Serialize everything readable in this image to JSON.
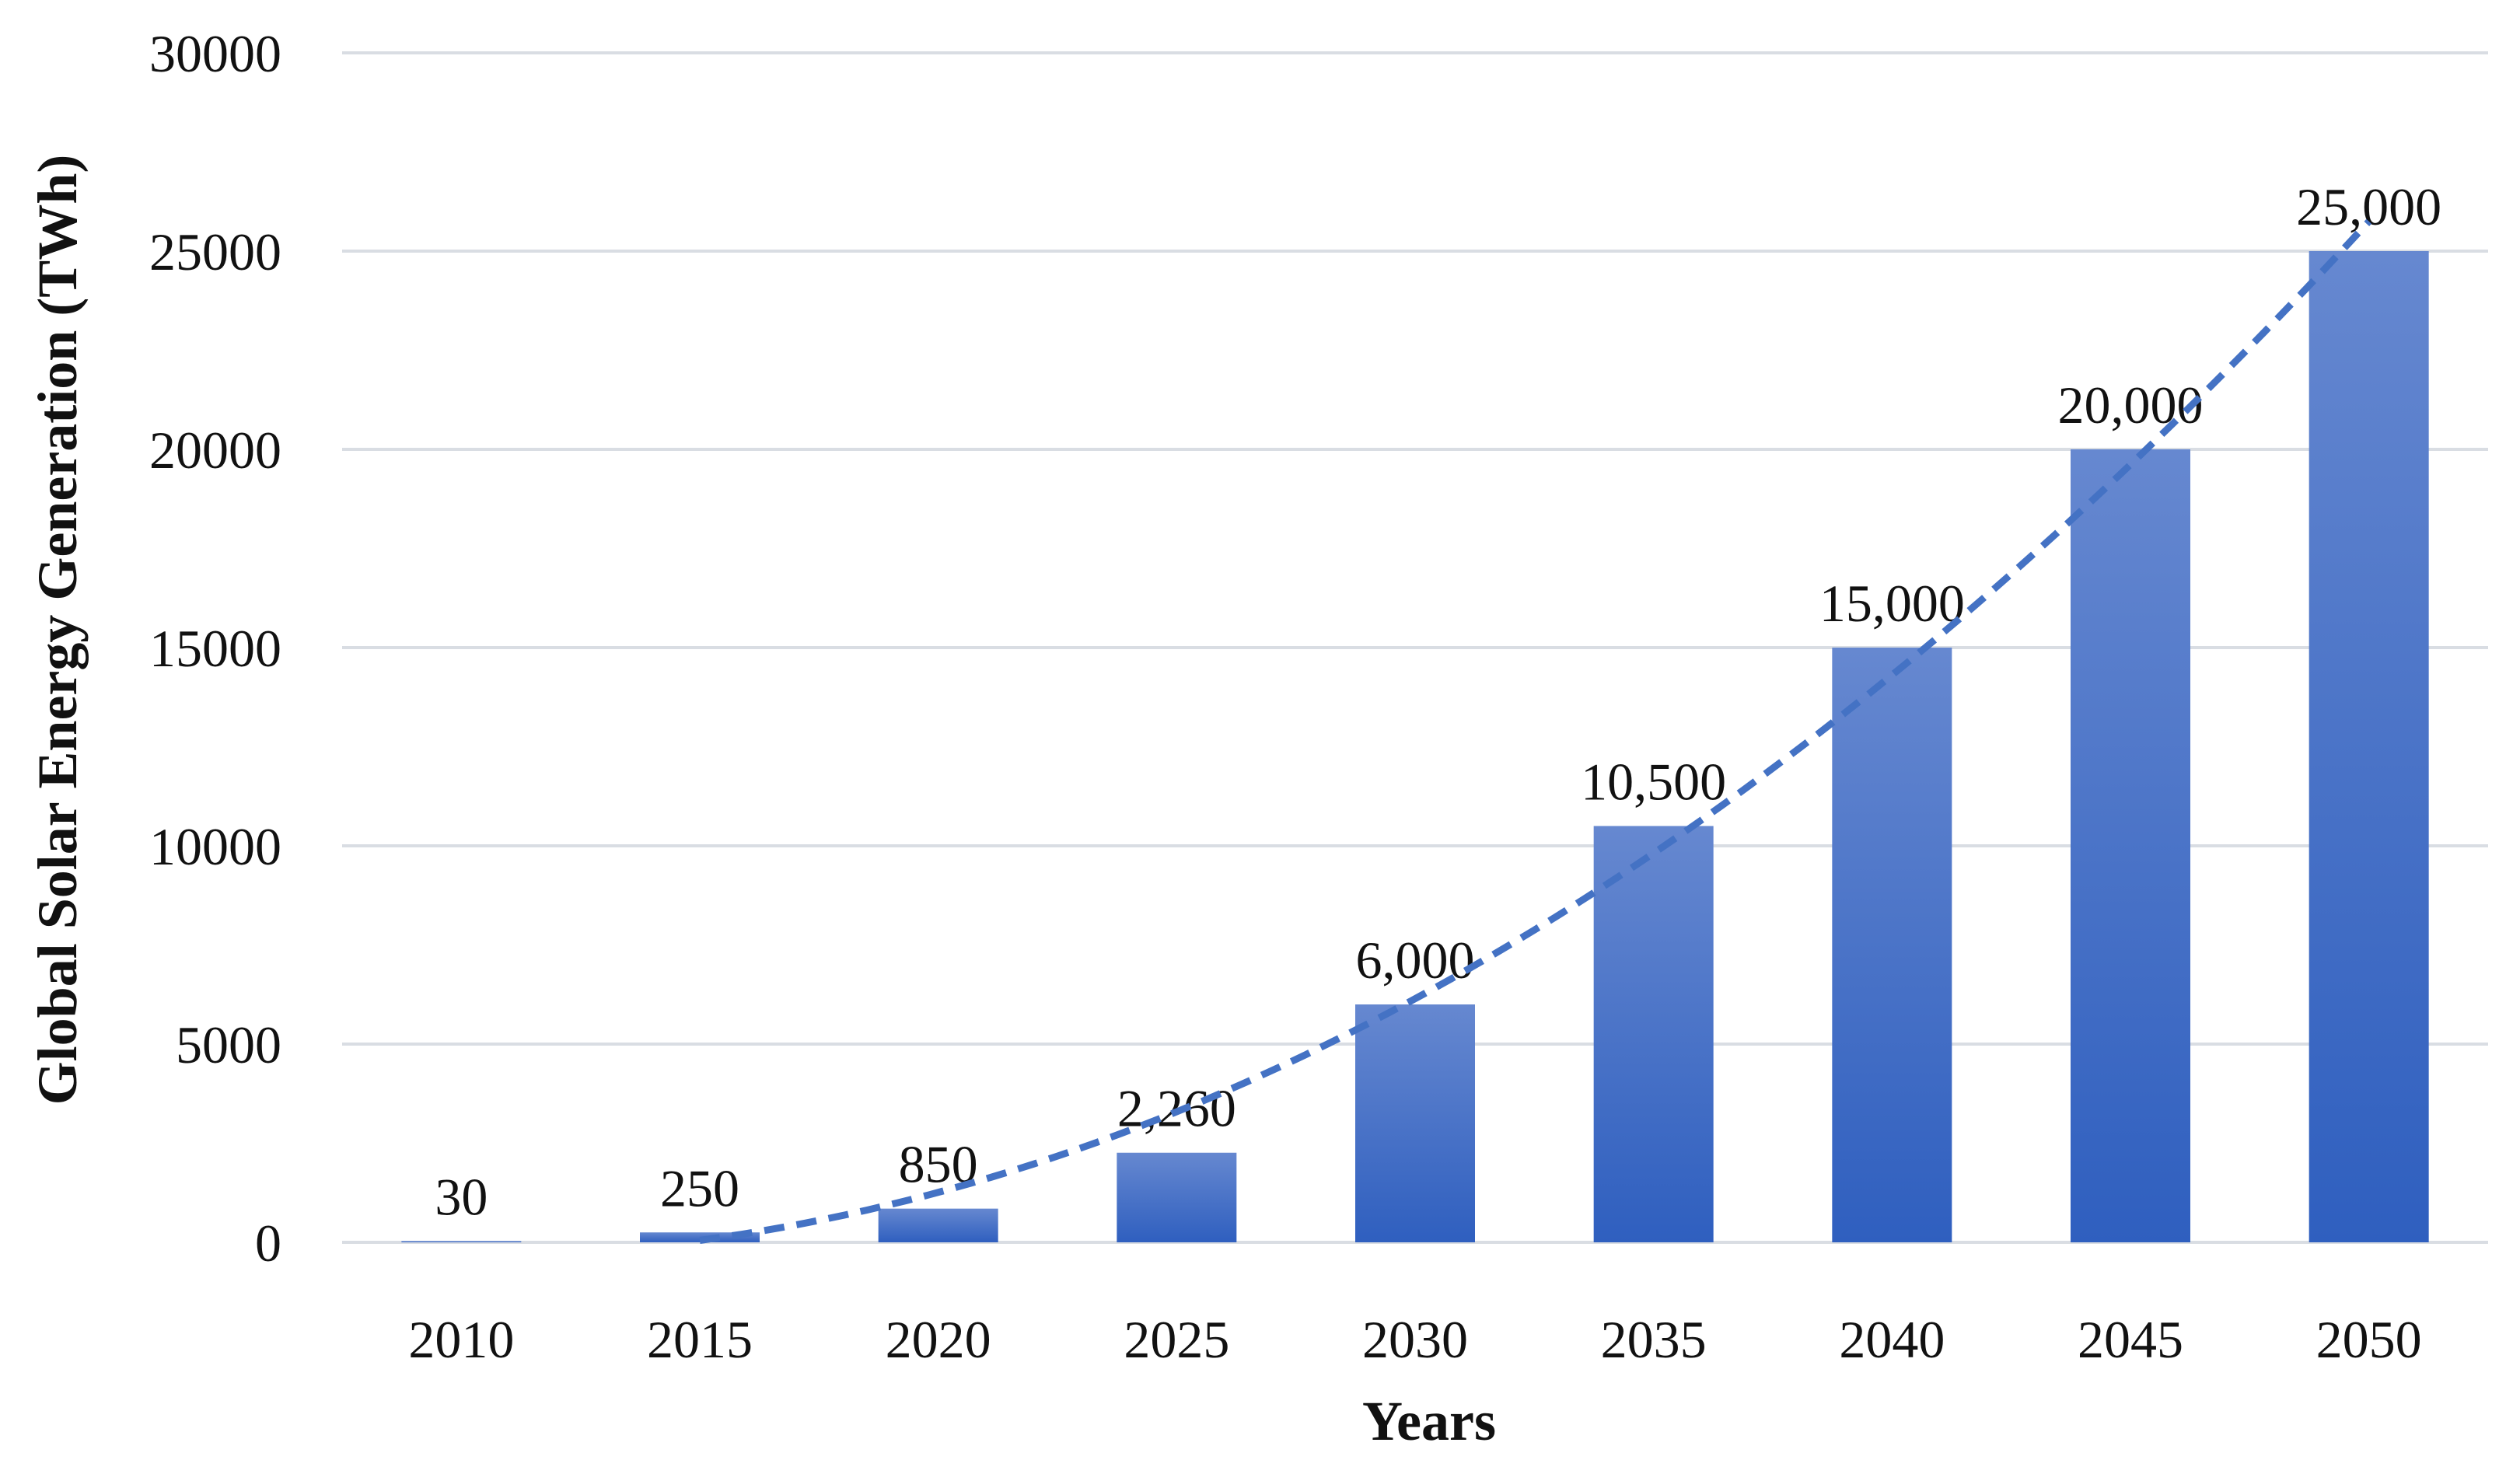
{
  "chart_data": {
    "type": "bar",
    "title": "",
    "xlabel": "Years",
    "ylabel": "Global Solar Energy Generation (TWh)",
    "categories": [
      "2010",
      "2015",
      "2020",
      "2025",
      "2030",
      "2035",
      "2040",
      "2045",
      "2050"
    ],
    "values": [
      30,
      250,
      850,
      2260,
      6000,
      10500,
      15000,
      20000,
      25000
    ],
    "data_labels": [
      "30",
      "250",
      "850",
      "2,260",
      "6,000",
      "10,500",
      "15,000",
      "20,000",
      "25,000"
    ],
    "ylim": [
      0,
      30000
    ],
    "yticks": [
      "0",
      "5000",
      "10000",
      "15000",
      "20000",
      "25000",
      "30000"
    ],
    "grid": true,
    "legend": "none",
    "trendline": {
      "style": "dashed",
      "kind": "polynomial",
      "from_category": "2015"
    },
    "colors": {
      "bar_top": "#6688d0",
      "bar_bottom": "#2f5fbf",
      "trendline": "#4472c4",
      "grid": "#d9dde3"
    }
  }
}
